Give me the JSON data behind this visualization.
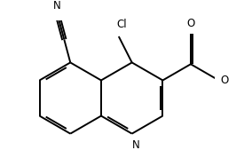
{
  "background_color": "#ffffff",
  "line_color": "#000000",
  "line_width": 1.4,
  "font_size": 8.5,
  "atoms": {
    "N_label": "N",
    "Cl_label": "Cl",
    "O_label": "O",
    "O2_label": "O"
  }
}
